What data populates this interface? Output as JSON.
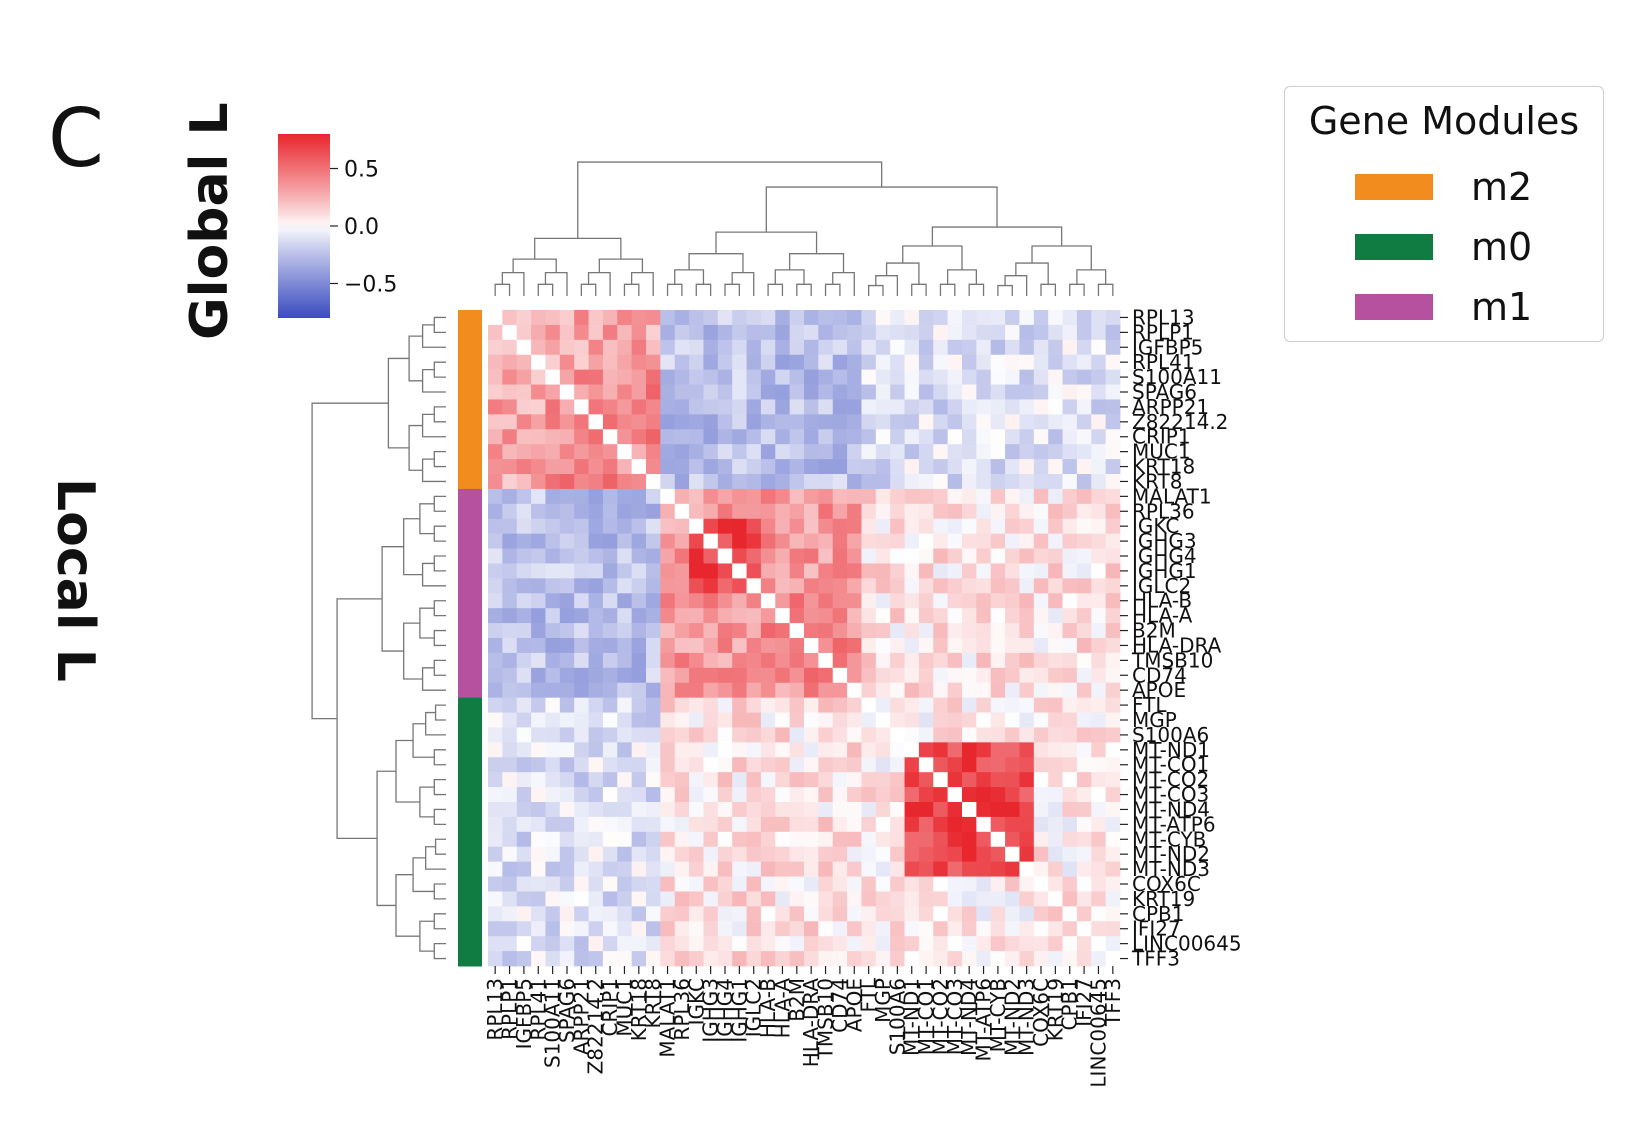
{
  "panel_letter": "C",
  "global_label": "Global L",
  "local_label": "Local L",
  "legend": {
    "title": "Gene Modules",
    "items": [
      {
        "label": "m2",
        "color": "#f28c1e"
      },
      {
        "label": "m0",
        "color": "#107c41"
      },
      {
        "label": "m1",
        "color": "#b5519e"
      }
    ]
  },
  "colorbar": {
    "ticks": [
      "0.5",
      "0.0",
      "−0.5"
    ],
    "tick_values": [
      0.5,
      0.0,
      -0.5
    ],
    "range": [
      -0.8,
      0.8
    ],
    "cmap": [
      "#3b4cc0",
      "#ffffff",
      "#e8262d"
    ]
  },
  "chart_data": {
    "type": "heatmap",
    "title": "",
    "xlabel": "",
    "ylabel": "",
    "genes": [
      "RPL13",
      "RPLP1",
      "IGFBP5",
      "RPL41",
      "S100A11",
      "SPAG6",
      "ARPP21",
      "Z82214.2",
      "CRIP1",
      "MUC1",
      "KRT18",
      "KRT8",
      "MALAT1",
      "RPL36",
      "IGKC",
      "IGHG3",
      "IGHG4",
      "IGHG1",
      "IGLC2",
      "HLA-B",
      "HLA-A",
      "B2M",
      "HLA-DRA",
      "TMSB10",
      "CD74",
      "APOE",
      "FTL",
      "MGP",
      "S100A6",
      "MT-ND1",
      "MT-CO1",
      "MT-CO2",
      "MT-CO3",
      "MT-ND4",
      "MT-ATP6",
      "MT-CYB",
      "MT-ND2",
      "MT-ND3",
      "COX6C",
      "KRT19",
      "CPB1",
      "IFI27",
      "LINC00645",
      "TFF3"
    ],
    "gene_modules": [
      "m2",
      "m2",
      "m2",
      "m2",
      "m2",
      "m2",
      "m2",
      "m2",
      "m2",
      "m2",
      "m2",
      "m2",
      "m1",
      "m1",
      "m1",
      "m1",
      "m1",
      "m1",
      "m1",
      "m1",
      "m1",
      "m1",
      "m1",
      "m1",
      "m1",
      "m1",
      "m0",
      "m0",
      "m0",
      "m0",
      "m0",
      "m0",
      "m0",
      "m0",
      "m0",
      "m0",
      "m0",
      "m0",
      "m0",
      "m0",
      "m0",
      "m0",
      "m0",
      "m0"
    ],
    "blocks": [
      {
        "modules": [
          "m2",
          "m2"
        ],
        "value": 0.3
      },
      {
        "modules": [
          "m1",
          "m1"
        ],
        "value": 0.35
      },
      {
        "modules": [
          "m0",
          "m0"
        ],
        "value": 0.05
      },
      {
        "modules": [
          "m2",
          "m1"
        ],
        "value": -0.25
      },
      {
        "modules": [
          "m2",
          "m0"
        ],
        "value": -0.12
      },
      {
        "modules": [
          "m1",
          "m0"
        ],
        "value": 0.08
      }
    ],
    "sub_blocks": [
      {
        "genes": [
          "IGKC",
          "IGHG3",
          "IGHG4",
          "IGHG1",
          "IGLC2"
        ],
        "value": 0.65
      },
      {
        "genes": [
          "HLA-B",
          "HLA-A",
          "B2M",
          "HLA-DRA",
          "TMSB10",
          "CD74"
        ],
        "value": 0.45
      },
      {
        "genes": [
          "MT-ND1",
          "MT-CO1",
          "MT-CO2",
          "MT-CO3",
          "MT-ND4",
          "MT-ATP6",
          "MT-CYB",
          "MT-ND2",
          "MT-ND3"
        ],
        "value": 0.68
      },
      {
        "genes": [
          "S100A11",
          "SPAG6",
          "ARPP21",
          "Z82214.2",
          "CRIP1",
          "MUC1",
          "KRT18",
          "KRT8"
        ],
        "value": 0.4
      }
    ],
    "legend_placement": "top-right",
    "colorbar_placement": "top-left",
    "grid": false
  }
}
